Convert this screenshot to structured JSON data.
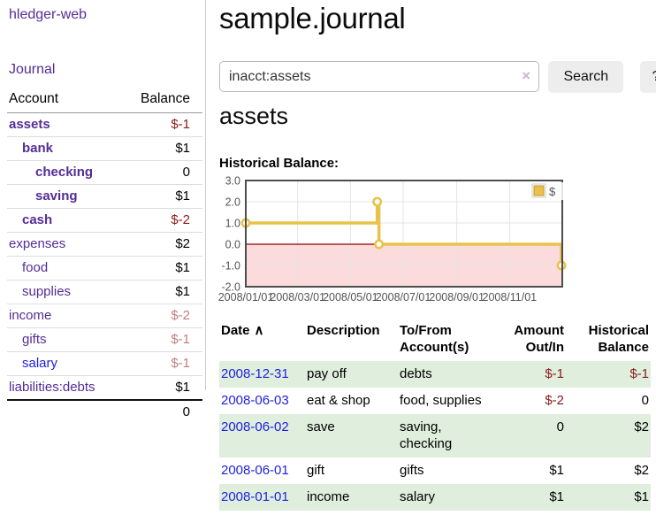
{
  "app": {
    "brand": "hledger-web",
    "nav_journal": "Journal"
  },
  "colors": {
    "link_purple": "#542d96",
    "link_blue": "#1f1fe0",
    "negative_strong": "#8b1a1a",
    "negative_soft": "#c07e80",
    "row_stripe_green": "#dfeedd",
    "chart_line_gold": "#e8c24a"
  },
  "sidebar": {
    "accounts_header": {
      "account": "Account",
      "balance": "Balance"
    },
    "accounts": [
      {
        "name": "assets",
        "balance": "$-1",
        "depth": 1,
        "bold": true,
        "neg": "strong",
        "blue": false
      },
      {
        "name": "bank",
        "balance": "$1",
        "depth": 2,
        "bold": true,
        "neg": null,
        "blue": false
      },
      {
        "name": "checking",
        "balance": "0",
        "depth": 3,
        "bold": true,
        "neg": null,
        "blue": false
      },
      {
        "name": "saving",
        "balance": "$1",
        "depth": 3,
        "bold": true,
        "neg": null,
        "blue": false
      },
      {
        "name": "cash",
        "balance": "$-2",
        "depth": 2,
        "bold": true,
        "neg": "strong",
        "blue": false
      },
      {
        "name": "expenses",
        "balance": "$2",
        "depth": 1,
        "bold": false,
        "neg": null,
        "blue": false
      },
      {
        "name": "food",
        "balance": "$1",
        "depth": 2,
        "bold": false,
        "neg": null,
        "blue": false
      },
      {
        "name": "supplies",
        "balance": "$1",
        "depth": 2,
        "bold": false,
        "neg": null,
        "blue": false
      },
      {
        "name": "income",
        "balance": "$-2",
        "depth": 1,
        "bold": false,
        "neg": "soft",
        "blue": false
      },
      {
        "name": "gifts",
        "balance": "$-1",
        "depth": 2,
        "bold": false,
        "neg": "soft",
        "blue": false
      },
      {
        "name": "salary",
        "balance": "$-1",
        "depth": 2,
        "bold": false,
        "neg": "soft",
        "blue": true
      },
      {
        "name": "liabilities:debts",
        "balance": "$1",
        "depth": 1,
        "bold": false,
        "neg": null,
        "blue": false
      }
    ],
    "total": "0"
  },
  "header": {
    "title": "sample.journal"
  },
  "search": {
    "value": "inacct:assets",
    "clear_icon": "×",
    "button": "Search",
    "help_button": "?"
  },
  "account_page": {
    "heading": "assets"
  },
  "chart_data": {
    "type": "line",
    "step": true,
    "title": "Historical Balance:",
    "x_start": "2008-01-01",
    "x_end": "2009-01-01",
    "xticks": [
      {
        "date": "2008-01-01",
        "label": "2008/01/01"
      },
      {
        "date": "2008-03-01",
        "label": "2008/03/01"
      },
      {
        "date": "2008-05-01",
        "label": "2008/05/01"
      },
      {
        "date": "2008-07-01",
        "label": "2008/07/01"
      },
      {
        "date": "2008-09-01",
        "label": "2008/09/01"
      },
      {
        "date": "2008-11-01",
        "label": "2008/11/01"
      }
    ],
    "yticks": [
      3.0,
      2.0,
      1.0,
      0.0,
      -1.0,
      -2.0
    ],
    "ylim": [
      -2.0,
      3.0
    ],
    "series": [
      {
        "name": "$",
        "color": "#e8c24a",
        "points": [
          {
            "date": "2008-01-01",
            "value": 1
          },
          {
            "date": "2008-06-01",
            "value": 2
          },
          {
            "date": "2008-06-03",
            "value": 0
          },
          {
            "date": "2008-12-31",
            "value": -1
          }
        ]
      }
    ],
    "legend_position": "top-right",
    "negative_region_color": "#fbdbdb",
    "zero_line_color": "#8b0000"
  },
  "register": {
    "columns": [
      {
        "label": "Date",
        "align": "left",
        "sortable": true,
        "sort_icon": "∧"
      },
      {
        "label": "Description",
        "align": "left",
        "sortable": false
      },
      {
        "label": "To/From\nAccount(s)",
        "align": "left",
        "sortable": false
      },
      {
        "label": "Amount\nOut/In",
        "align": "right",
        "sortable": false
      },
      {
        "label": "Historical\nBalance",
        "align": "right",
        "sortable": false
      }
    ],
    "rows": [
      {
        "date": "2008-12-31",
        "description": "pay off",
        "accounts": "debts",
        "amount": "$-1",
        "amount_negative": true,
        "balance": "$-1",
        "balance_negative": true
      },
      {
        "date": "2008-06-03",
        "description": "eat & shop",
        "accounts": "food, supplies",
        "amount": "$-2",
        "amount_negative": true,
        "balance": "0",
        "balance_negative": false
      },
      {
        "date": "2008-06-02",
        "description": "save",
        "accounts": "saving, checking",
        "amount": "0",
        "amount_negative": false,
        "balance": "$2",
        "balance_negative": false
      },
      {
        "date": "2008-06-01",
        "description": "gift",
        "accounts": "gifts",
        "amount": "$1",
        "amount_negative": false,
        "balance": "$2",
        "balance_negative": false
      },
      {
        "date": "2008-01-01",
        "description": "income",
        "accounts": "salary",
        "amount": "$1",
        "amount_negative": false,
        "balance": "$1",
        "balance_negative": false
      }
    ]
  }
}
